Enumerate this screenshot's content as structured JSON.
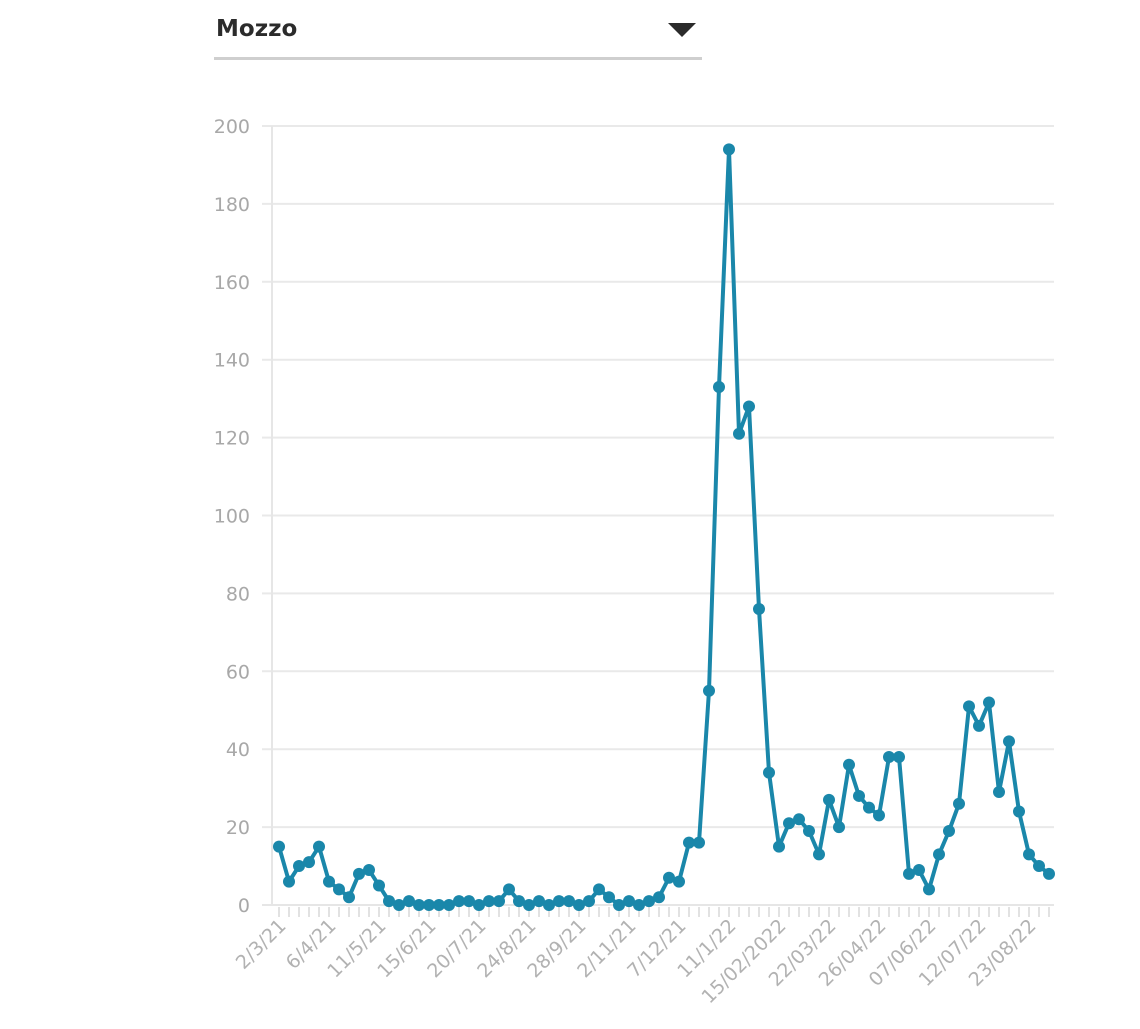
{
  "selector": {
    "selected": "Mozzo",
    "arrow_icon": "caret-down-icon"
  },
  "colors": {
    "series": "#1a87aa",
    "grid": "#e9e9e9",
    "tick_text": "#a8a8a8"
  },
  "chart_data": {
    "type": "line",
    "title": "",
    "xlabel": "",
    "ylabel": "",
    "ylim": [
      0,
      200
    ],
    "yticks": [
      0,
      20,
      40,
      60,
      80,
      100,
      120,
      140,
      160,
      180,
      200
    ],
    "grid": true,
    "legend": "none",
    "x_tick_labels": [
      {
        "index": 0,
        "label": "2/3/21"
      },
      {
        "index": 5,
        "label": "6/4/21"
      },
      {
        "index": 10,
        "label": "11/5/21"
      },
      {
        "index": 15,
        "label": "15/6/21"
      },
      {
        "index": 20,
        "label": "20/7/21"
      },
      {
        "index": 25,
        "label": "24/8/21"
      },
      {
        "index": 30,
        "label": "28/9/21"
      },
      {
        "index": 35,
        "label": "2/11/21"
      },
      {
        "index": 40,
        "label": "7/12/21"
      },
      {
        "index": 45,
        "label": "11/1/22"
      },
      {
        "index": 50,
        "label": "15/02/2022"
      },
      {
        "index": 55,
        "label": "22/03/22"
      },
      {
        "index": 60,
        "label": "26/04/22"
      },
      {
        "index": 65,
        "label": "07/06/22"
      },
      {
        "index": 70,
        "label": "12/07/22"
      },
      {
        "index": 75,
        "label": "23/08/22"
      }
    ],
    "series": [
      {
        "values": [
          15,
          6,
          10,
          11,
          15,
          6,
          4,
          2,
          8,
          9,
          5,
          1,
          0,
          1,
          0,
          0,
          0,
          0,
          1,
          1,
          0,
          1,
          1,
          4,
          1,
          0,
          1,
          0,
          1,
          1,
          0,
          1,
          4,
          2,
          0,
          1,
          0,
          1,
          2,
          7,
          6,
          16,
          16,
          55,
          133,
          194,
          121,
          128,
          76,
          34,
          15,
          21,
          22,
          19,
          13,
          27,
          20,
          36,
          28,
          25,
          23,
          38,
          38,
          8,
          9,
          4,
          13,
          19,
          26,
          51,
          46,
          52,
          29,
          42,
          24,
          13,
          10,
          8
        ]
      }
    ]
  }
}
